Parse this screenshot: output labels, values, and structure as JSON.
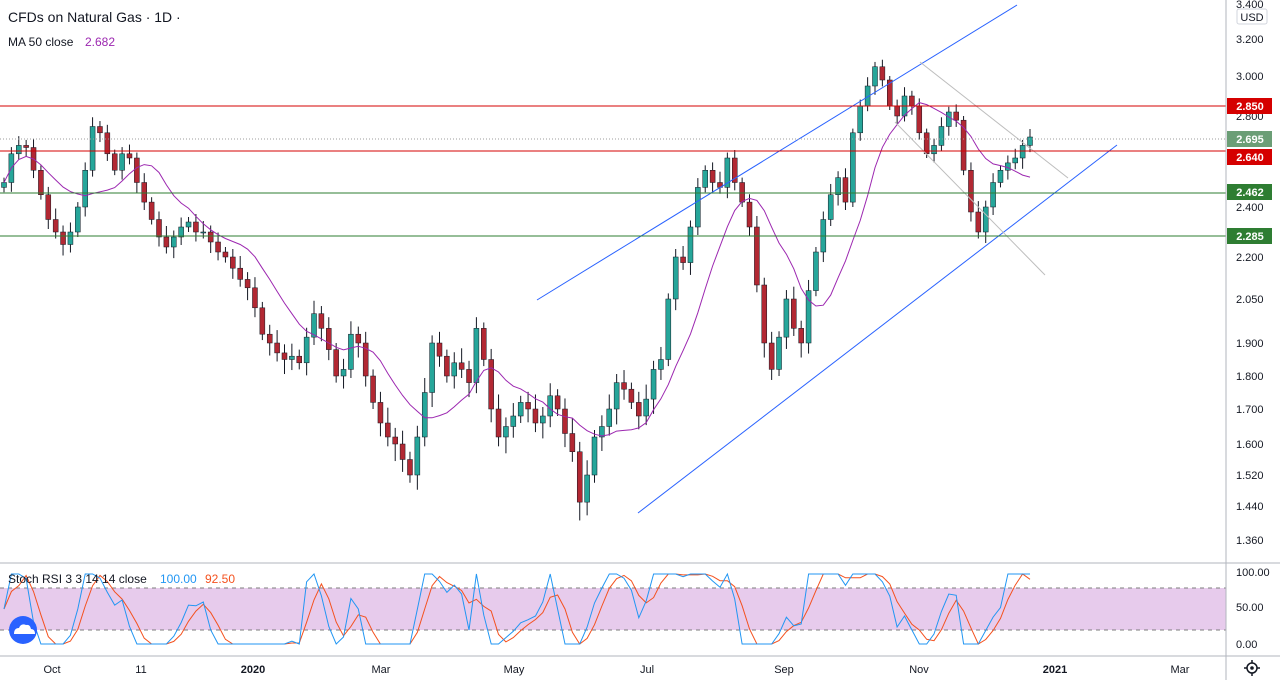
{
  "header": {
    "symbol_title": "CFDs on Natural Gas · 1D ·",
    "indicator_label": "MA 50 close",
    "indicator_value": "2.682",
    "stoch_label": "Stoch RSI 3 3 14 14 close",
    "stoch_k_value": "100.00",
    "stoch_d_value": "92.50"
  },
  "axis": {
    "currency": "USD"
  },
  "colors": {
    "bull": "#26a69a",
    "bear": "#b22833",
    "ma": "#9c27b0",
    "trend": "#2962ff",
    "support_line": "#2e7d32",
    "resistance_line": "#d50000",
    "stoch_k": "#2196f3",
    "stoch_d": "#f4511e",
    "stoch_band": "#e1bee7"
  },
  "chart_data": [
    {
      "type": "candlestick",
      "title": "CFDs on Natural Gas · 1D",
      "y_ticks": [
        "3.400",
        "3.200",
        "3.000",
        "2.800",
        "2.600",
        "2.400",
        "2.200",
        "2.050",
        "1.900",
        "1.800",
        "1.700",
        "1.600",
        "1.520",
        "1.440",
        "1.360"
      ],
      "x_ticks": [
        "Oct",
        "11",
        "2020",
        "Mar",
        "May",
        "Jul",
        "Sep",
        "Nov",
        "2021",
        "Mar"
      ],
      "ylim": [
        1.32,
        3.4
      ],
      "price_levels": [
        {
          "label": "2.850",
          "value": 2.85,
          "kind": "resistance"
        },
        {
          "label": "2.640",
          "value": 2.64,
          "kind": "resistance"
        },
        {
          "label": "2.462",
          "value": 2.462,
          "kind": "support"
        },
        {
          "label": "2.285",
          "value": 2.285,
          "kind": "support"
        }
      ],
      "last_price": {
        "label": "2.695",
        "value": 2.695
      },
      "moving_average": {
        "name": "MA 50 close",
        "last": 2.682
      },
      "closes": [
        2.5,
        2.62,
        2.66,
        2.65,
        2.55,
        2.45,
        2.35,
        2.3,
        2.25,
        2.3,
        2.4,
        2.55,
        2.75,
        2.72,
        2.62,
        2.55,
        2.62,
        2.6,
        2.5,
        2.42,
        2.35,
        2.28,
        2.24,
        2.28,
        2.32,
        2.34,
        2.3,
        2.3,
        2.26,
        2.22,
        2.2,
        2.16,
        2.12,
        2.09,
        2.02,
        1.93,
        1.9,
        1.87,
        1.85,
        1.86,
        1.84,
        1.92,
        2.0,
        1.95,
        1.88,
        1.8,
        1.82,
        1.93,
        1.9,
        1.8,
        1.72,
        1.66,
        1.62,
        1.6,
        1.56,
        1.52,
        1.62,
        1.75,
        1.9,
        1.86,
        1.8,
        1.84,
        1.82,
        1.78,
        1.95,
        1.85,
        1.7,
        1.62,
        1.65,
        1.68,
        1.72,
        1.7,
        1.66,
        1.68,
        1.74,
        1.7,
        1.63,
        1.58,
        1.45,
        1.52,
        1.62,
        1.65,
        1.7,
        1.78,
        1.76,
        1.72,
        1.68,
        1.73,
        1.82,
        1.85,
        2.05,
        2.2,
        2.18,
        2.32,
        2.48,
        2.55,
        2.5,
        2.48,
        2.6,
        2.5,
        2.42,
        2.32,
        2.1,
        1.9,
        1.82,
        1.92,
        2.05,
        1.95,
        1.9,
        2.08,
        2.22,
        2.35,
        2.45,
        2.52,
        2.42,
        2.72,
        2.85,
        2.95,
        3.05,
        2.98,
        2.85,
        2.8,
        2.9,
        2.85,
        2.72,
        2.62,
        2.66,
        2.75,
        2.82,
        2.78,
        2.55,
        2.38,
        2.3,
        2.4,
        2.5,
        2.55,
        2.58,
        2.6,
        2.66,
        2.7
      ],
      "trend_channel": "ascending channel drawn from late June lows to the November high",
      "stoch_rsi": {
        "name": "Stoch RSI 3 3 14 14 close",
        "k_last": 100.0,
        "d_last": 92.5,
        "y_ticks": [
          "100.00",
          "50.00",
          "0.00"
        ],
        "upper_band": 80,
        "lower_band": 20
      }
    }
  ]
}
